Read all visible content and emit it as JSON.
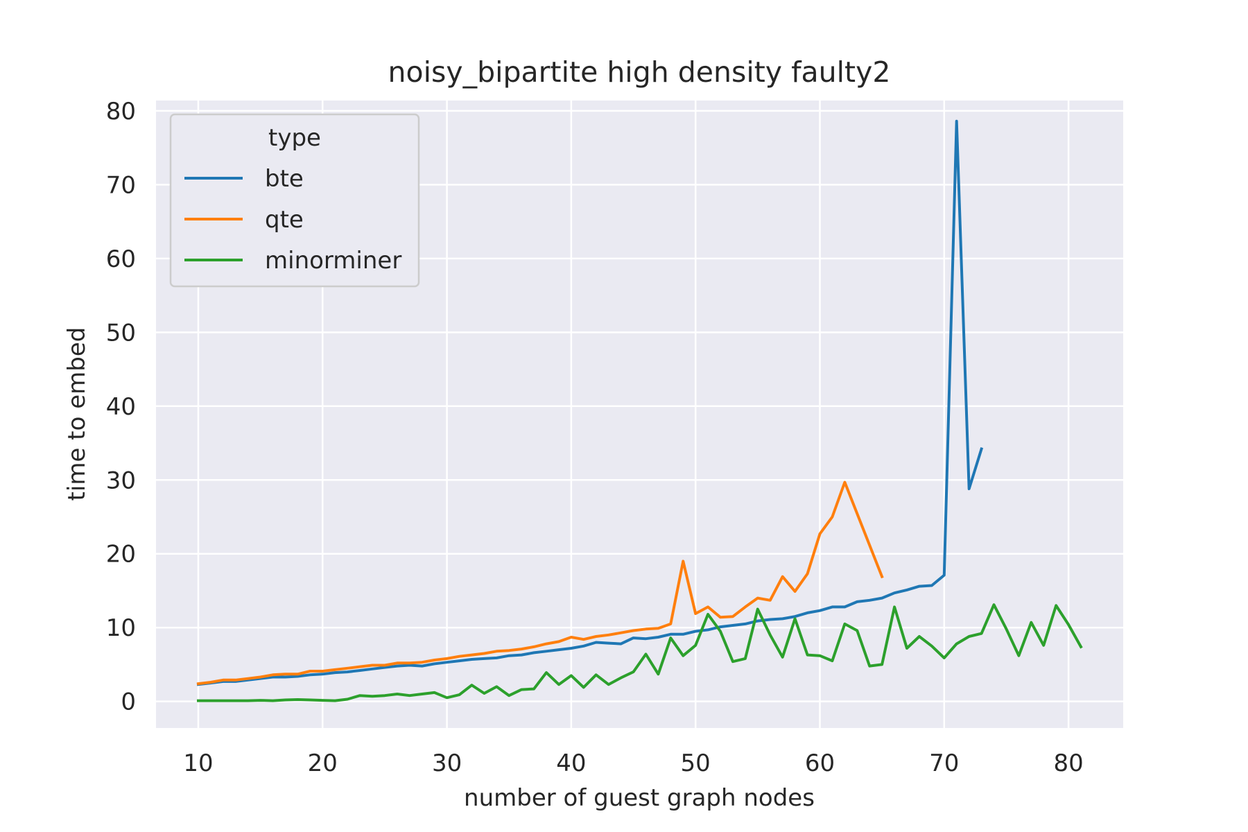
{
  "chart_data": {
    "type": "line",
    "title": "noisy_bipartite high density faulty2",
    "xlabel": "number of guest graph nodes",
    "ylabel": "time to embed",
    "xlim": [
      6.6,
      84.4
    ],
    "ylim": [
      -3.6,
      81.4
    ],
    "x_ticks": [
      10,
      20,
      30,
      40,
      50,
      60,
      70,
      80
    ],
    "y_ticks": [
      0,
      10,
      20,
      30,
      40,
      50,
      60,
      70,
      80
    ],
    "grid": true,
    "legend": {
      "title": "type",
      "placement": "top-left"
    },
    "series": [
      {
        "name": "bte",
        "color": "#1f77b4",
        "x": [
          10,
          11,
          12,
          13,
          14,
          15,
          16,
          17,
          18,
          19,
          20,
          21,
          22,
          23,
          24,
          25,
          26,
          27,
          28,
          29,
          30,
          31,
          32,
          33,
          34,
          35,
          36,
          37,
          38,
          39,
          40,
          41,
          42,
          43,
          44,
          45,
          46,
          47,
          48,
          49,
          50,
          51,
          52,
          53,
          54,
          55,
          56,
          57,
          58,
          59,
          60,
          61,
          62,
          63,
          64,
          65,
          66,
          67,
          68,
          69,
          70,
          71,
          72,
          73
        ],
        "y": [
          2.3,
          2.5,
          2.7,
          2.7,
          2.9,
          3.1,
          3.3,
          3.3,
          3.4,
          3.6,
          3.7,
          3.9,
          4.0,
          4.2,
          4.4,
          4.6,
          4.8,
          4.9,
          4.8,
          5.1,
          5.3,
          5.5,
          5.7,
          5.8,
          5.9,
          6.2,
          6.3,
          6.6,
          6.8,
          7.0,
          7.2,
          7.5,
          8.0,
          7.9,
          7.8,
          8.6,
          8.5,
          8.7,
          9.1,
          9.1,
          9.5,
          9.7,
          10.1,
          10.3,
          10.5,
          10.9,
          11.1,
          11.2,
          11.5,
          12.0,
          12.3,
          12.8,
          12.8,
          13.5,
          13.7,
          14.0,
          14.7,
          15.1,
          15.6,
          15.7,
          17.1,
          78.6,
          28.8,
          34.2
        ]
      },
      {
        "name": "qte",
        "color": "#ff7f0e",
        "x": [
          10,
          11,
          12,
          13,
          14,
          15,
          16,
          17,
          18,
          19,
          20,
          21,
          22,
          23,
          24,
          25,
          26,
          27,
          28,
          29,
          30,
          31,
          32,
          33,
          34,
          35,
          36,
          37,
          38,
          39,
          40,
          41,
          42,
          43,
          44,
          45,
          46,
          47,
          48,
          49,
          50,
          51,
          52,
          53,
          54,
          55,
          56,
          57,
          58,
          59,
          60,
          61,
          62,
          65
        ],
        "y": [
          2.4,
          2.6,
          2.9,
          2.9,
          3.1,
          3.3,
          3.6,
          3.7,
          3.7,
          4.1,
          4.1,
          4.3,
          4.5,
          4.7,
          4.9,
          4.9,
          5.2,
          5.2,
          5.3,
          5.6,
          5.8,
          6.1,
          6.3,
          6.5,
          6.8,
          6.9,
          7.1,
          7.4,
          7.8,
          8.1,
          8.7,
          8.4,
          8.8,
          9.0,
          9.3,
          9.6,
          9.8,
          9.9,
          10.5,
          19.0,
          11.9,
          12.8,
          11.4,
          11.5,
          12.8,
          14.0,
          13.7,
          16.9,
          14.9,
          17.3,
          22.7,
          25.0,
          29.7,
          16.9
        ]
      },
      {
        "name": "minorminer",
        "color": "#2ca02c",
        "x": [
          10,
          11,
          12,
          13,
          14,
          15,
          16,
          17,
          18,
          19,
          20,
          21,
          22,
          23,
          24,
          25,
          26,
          27,
          28,
          29,
          30,
          31,
          32,
          33,
          34,
          35,
          36,
          37,
          38,
          39,
          40,
          41,
          42,
          43,
          44,
          45,
          46,
          47,
          48,
          49,
          50,
          51,
          52,
          53,
          54,
          55,
          56,
          57,
          58,
          59,
          60,
          61,
          62,
          63,
          64,
          65,
          66,
          67,
          68,
          69,
          70,
          71,
          72,
          73,
          74,
          75,
          76,
          77,
          78,
          79,
          80,
          81
        ],
        "y": [
          0.1,
          0.1,
          0.1,
          0.1,
          0.1,
          0.15,
          0.1,
          0.2,
          0.25,
          0.2,
          0.15,
          0.1,
          0.3,
          0.8,
          0.7,
          0.8,
          1.0,
          0.8,
          1.0,
          1.2,
          0.5,
          0.9,
          2.2,
          1.1,
          2.0,
          0.8,
          1.6,
          1.7,
          3.9,
          2.3,
          3.5,
          1.9,
          3.6,
          2.3,
          3.2,
          4.0,
          6.4,
          3.7,
          8.6,
          6.2,
          7.6,
          11.8,
          9.5,
          5.4,
          5.8,
          12.5,
          9.0,
          6.0,
          11.2,
          6.3,
          6.2,
          5.5,
          10.5,
          9.6,
          4.8,
          5.0,
          12.8,
          7.2,
          8.8,
          7.5,
          5.9,
          7.8,
          8.8,
          9.2,
          13.1,
          9.8,
          6.2,
          10.7,
          7.6,
          13.0,
          10.4,
          7.4
        ]
      }
    ]
  }
}
